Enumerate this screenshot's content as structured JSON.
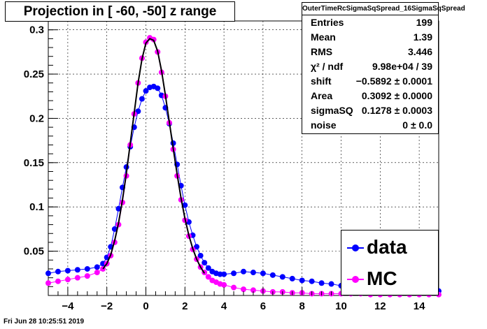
{
  "title": "Projection in [ -60, -50] z range",
  "stats": {
    "name": "OuterTimeRcSigmaSqSpread_16SigmaSqSpread",
    "rows": [
      {
        "key": "Entries",
        "value": "199"
      },
      {
        "key": "Mean",
        "value": "1.39"
      },
      {
        "key": "RMS",
        "value": "3.446"
      },
      {
        "key": "χ² / ndf",
        "value": "9.98e+04 / 39"
      },
      {
        "key": "shift",
        "value": "−0.5892 ± 0.0001"
      },
      {
        "key": "Area",
        "value": "0.3092 ± 0.0000"
      },
      {
        "key": "sigmaSQ",
        "value": "0.1278 ± 0.0003"
      },
      {
        "key": "noise",
        "value": "0 ± 0.0"
      }
    ]
  },
  "timestamp": "Fri Jun 28 10:25:51 2019",
  "colors": {
    "data": "#0000ff",
    "mc": "#ff00ff",
    "fit": "#000000",
    "axis": "#000000"
  },
  "chart_data": {
    "type": "scatter",
    "xlim": [
      -5,
      15
    ],
    "ylim": [
      0,
      0.31
    ],
    "xticks": [
      -4,
      -2,
      0,
      2,
      4,
      6,
      8,
      10,
      12,
      14
    ],
    "yticks": [
      0.05,
      0.1,
      0.15,
      0.2,
      0.25,
      0.3
    ],
    "xtick_labels": [
      "−4",
      "−2",
      "0",
      "2",
      "4",
      "6",
      "8",
      "10",
      "12",
      "14"
    ],
    "ytick_labels": [
      "0.05",
      "0.1",
      "0.15",
      "0.2",
      "0.25",
      "0.3"
    ],
    "grid": true,
    "legend": "bottom-right",
    "series": [
      {
        "name": "data",
        "x": [
          -5,
          -4.5,
          -4,
          -3.5,
          -3,
          -2.5,
          -2.2,
          -2,
          -1.8,
          -1.6,
          -1.4,
          -1.2,
          -1,
          -0.8,
          -0.6,
          -0.4,
          -0.2,
          0,
          0.2,
          0.4,
          0.6,
          0.8,
          1,
          1.2,
          1.4,
          1.6,
          1.8,
          2,
          2.2,
          2.4,
          2.6,
          2.8,
          3,
          3.2,
          3.4,
          3.6,
          3.8,
          4,
          4.5,
          5,
          5.5,
          6,
          6.5,
          7,
          7.5,
          8,
          8.5,
          9,
          9.5,
          10,
          10.5,
          11,
          11.5,
          12,
          12.5,
          13,
          13.5,
          14,
          14.5,
          15
        ],
        "y": [
          0.025,
          0.027,
          0.028,
          0.029,
          0.03,
          0.032,
          0.036,
          0.043,
          0.055,
          0.075,
          0.098,
          0.122,
          0.145,
          0.168,
          0.19,
          0.208,
          0.222,
          0.231,
          0.235,
          0.236,
          0.234,
          0.226,
          0.212,
          0.194,
          0.172,
          0.148,
          0.124,
          0.102,
          0.083,
          0.068,
          0.055,
          0.045,
          0.037,
          0.031,
          0.027,
          0.025,
          0.024,
          0.024,
          0.025,
          0.027,
          0.026,
          0.025,
          0.023,
          0.021,
          0.019,
          0.017,
          0.016,
          0.014,
          0.013,
          0.011,
          0.01,
          0.009,
          0.008,
          0.008,
          0.007,
          0.007,
          0.006,
          0.006,
          0.006,
          0.005
        ]
      },
      {
        "name": "MC",
        "x": [
          -5,
          -4.5,
          -4,
          -3.5,
          -3,
          -2.5,
          -2.2,
          -2,
          -1.8,
          -1.6,
          -1.4,
          -1.2,
          -1,
          -0.8,
          -0.6,
          -0.4,
          -0.2,
          0,
          0.2,
          0.4,
          0.6,
          0.8,
          1,
          1.2,
          1.4,
          1.6,
          1.8,
          2,
          2.2,
          2.4,
          2.6,
          2.8,
          3,
          3.2,
          3.4,
          3.6,
          3.8,
          4,
          4.5,
          5,
          5.5,
          6,
          6.5,
          7,
          7.5,
          8,
          8.5,
          9,
          9.5,
          10,
          10.5,
          11,
          11.5,
          12,
          12.5,
          13,
          13.5,
          14,
          14.5,
          15
        ],
        "y": [
          0.014,
          0.016,
          0.018,
          0.02,
          0.022,
          0.026,
          0.03,
          0.036,
          0.045,
          0.06,
          0.08,
          0.105,
          0.135,
          0.17,
          0.205,
          0.24,
          0.268,
          0.286,
          0.291,
          0.289,
          0.275,
          0.252,
          0.225,
          0.195,
          0.165,
          0.135,
          0.108,
          0.085,
          0.067,
          0.052,
          0.041,
          0.032,
          0.026,
          0.021,
          0.017,
          0.015,
          0.013,
          0.012,
          0.009,
          0.007,
          0.006,
          0.005,
          0.004,
          0.004,
          0.003,
          0.003,
          0.002,
          0.002,
          0.002,
          0.002,
          0.002,
          0.002,
          0.001,
          0.001,
          0.001,
          0.001,
          0.001,
          0.001,
          0.001,
          0.001
        ]
      },
      {
        "name": "",
        "fit": true,
        "x": [
          -2.2,
          -2,
          -1.8,
          -1.6,
          -1.4,
          -1.2,
          -1,
          -0.8,
          -0.6,
          -0.4,
          -0.2,
          0,
          0.2,
          0.4,
          0.6,
          0.8,
          1,
          1.2,
          1.4,
          1.6,
          1.8,
          2,
          2.2,
          2.4,
          2.6,
          2.8,
          3
        ],
        "y": [
          0.03,
          0.036,
          0.046,
          0.062,
          0.082,
          0.108,
          0.138,
          0.172,
          0.206,
          0.24,
          0.267,
          0.285,
          0.29,
          0.288,
          0.276,
          0.254,
          0.226,
          0.196,
          0.166,
          0.137,
          0.11,
          0.087,
          0.068,
          0.053,
          0.041,
          0.032,
          0.025
        ]
      }
    ]
  }
}
